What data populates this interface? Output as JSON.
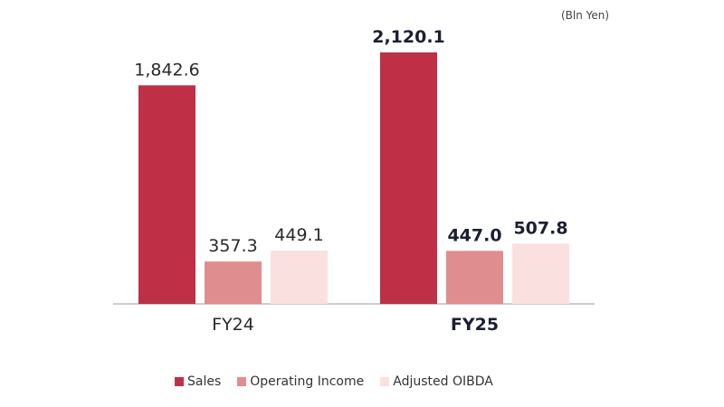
{
  "unit_label": "(Bln Yen)",
  "chart_data": {
    "type": "bar",
    "categories": [
      "FY24",
      "FY25"
    ],
    "category_bold": [
      false,
      true
    ],
    "series": [
      {
        "name": "Sales",
        "values": [
          1842.6,
          2120.1
        ],
        "labels": [
          "1,842.6",
          "2,120.1"
        ],
        "color": "#bf3047"
      },
      {
        "name": "Operating Income",
        "values": [
          357.3,
          447.0
        ],
        "labels": [
          "357.3",
          "447.0"
        ],
        "color": "#e08d8f"
      },
      {
        "name": "Adjusted OIBDA",
        "values": [
          449.1,
          507.8
        ],
        "labels": [
          "449.1",
          "507.8"
        ],
        "color": "#fbe0e0"
      }
    ],
    "ylim": [
      0,
      2150
    ],
    "grid": false,
    "legend_position": "bottom"
  }
}
